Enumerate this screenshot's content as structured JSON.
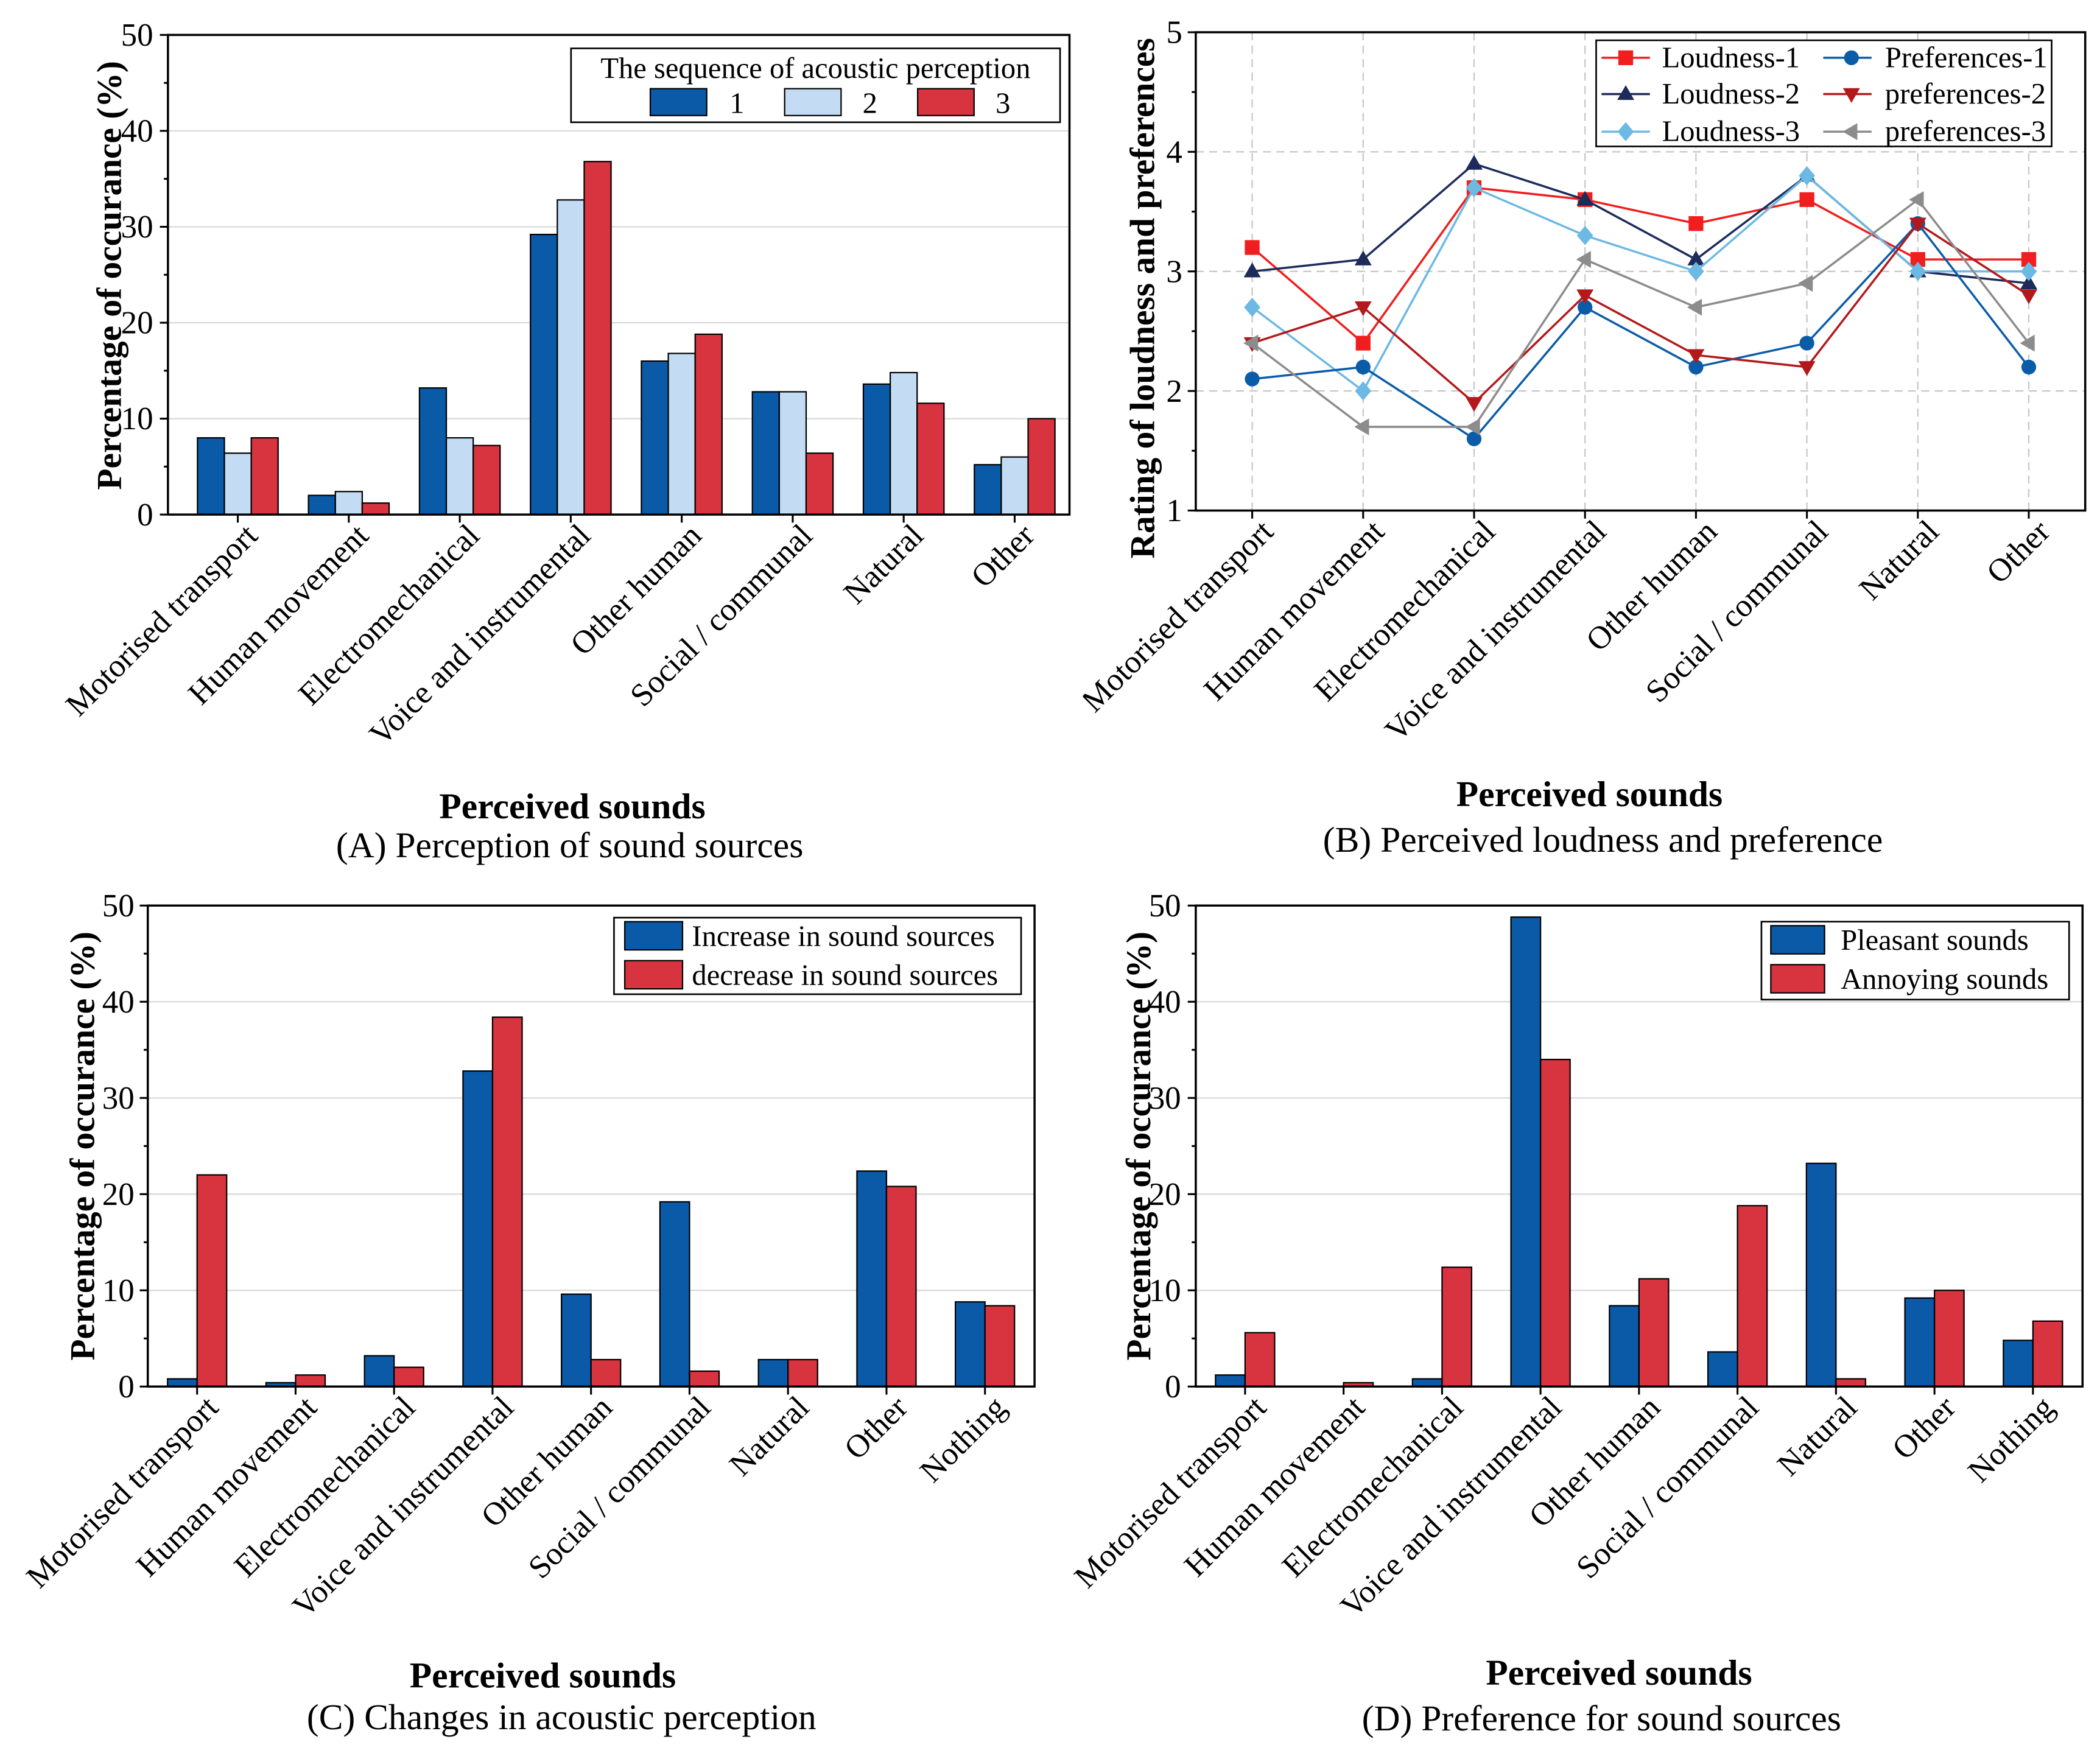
{
  "chart_data": [
    {
      "type": "bar",
      "caption": "(A) Perception of sound sources",
      "xlabel": "Perceived sounds",
      "ylabel": "Percentage of occurance (%)",
      "ylim": [
        0,
        50
      ],
      "yticks": [
        0,
        10,
        20,
        30,
        40,
        50
      ],
      "grid": true,
      "categories": [
        "Motorised transport",
        "Human movement",
        "Electromechanical",
        "Voice and instrumental",
        "Other human",
        "Social / communal",
        "Natural",
        "Other"
      ],
      "legend_title": "The sequence of acoustic perception",
      "legend_position": "top-right",
      "series": [
        {
          "name": "1",
          "color": "#0b5aa8",
          "values": [
            8.0,
            2.0,
            13.2,
            29.2,
            16.0,
            12.8,
            13.6,
            5.2
          ]
        },
        {
          "name": "2",
          "color": "#c3dcf3",
          "values": [
            6.4,
            2.4,
            8.0,
            32.8,
            16.8,
            12.8,
            14.8,
            6.0
          ]
        },
        {
          "name": "3",
          "color": "#d7343f",
          "values": [
            8.0,
            1.2,
            7.2,
            36.8,
            18.8,
            6.4,
            11.6,
            10.0
          ]
        }
      ]
    },
    {
      "type": "line",
      "caption": "(B) Perceived loudness and preference",
      "xlabel": "Perceived sounds",
      "ylabel": "Rating of loudness and preferences",
      "ylim": [
        1,
        5
      ],
      "yticks": [
        1,
        2,
        3,
        4,
        5
      ],
      "grid": true,
      "categories": [
        "Motorised transport",
        "Human movement",
        "Electromechanical",
        "Voice and instrumental",
        "Other human",
        "Social / communal",
        "Natural",
        "Other"
      ],
      "legend_position": "top-right",
      "series": [
        {
          "name": "Loudness-1",
          "color": "#f01e1e",
          "marker": "square",
          "values": [
            3.2,
            2.4,
            3.7,
            3.6,
            3.4,
            3.6,
            3.1,
            3.1
          ]
        },
        {
          "name": "Loudness-2",
          "color": "#1c2b5a",
          "marker": "triangle-up",
          "values": [
            3.0,
            3.1,
            3.9,
            3.6,
            3.1,
            3.8,
            3.0,
            2.9
          ]
        },
        {
          "name": "Loudness-3",
          "color": "#6cb9e3",
          "marker": "diamond",
          "values": [
            2.7,
            2.0,
            3.7,
            3.3,
            3.0,
            3.8,
            3.0,
            3.0
          ]
        },
        {
          "name": "Preferences-1",
          "color": "#0b5ca8",
          "marker": "circle",
          "values": [
            2.1,
            2.2,
            1.6,
            2.7,
            2.2,
            2.4,
            3.4,
            2.2
          ]
        },
        {
          "name": "preferences-2",
          "color": "#b3191b",
          "marker": "triangle-down",
          "values": [
            2.4,
            2.7,
            1.9,
            2.8,
            2.3,
            2.2,
            3.4,
            2.8
          ]
        },
        {
          "name": "preferences-3",
          "color": "#8c8c8c",
          "marker": "triangle-left",
          "values": [
            2.4,
            1.7,
            1.7,
            3.1,
            2.7,
            2.9,
            3.6,
            2.4
          ]
        }
      ]
    },
    {
      "type": "bar",
      "caption": "(C) Changes in acoustic perception",
      "xlabel": "Perceived sounds",
      "ylabel": "Percentage of occurance (%)",
      "ylim": [
        0,
        50
      ],
      "yticks": [
        0,
        10,
        20,
        30,
        40,
        50
      ],
      "grid": true,
      "categories": [
        "Motorised transport",
        "Human movement",
        "Electromechanical",
        "Voice and instrumental",
        "Other human",
        "Social / communal",
        "Natural",
        "Other",
        "Nothing"
      ],
      "legend_position": "top-right",
      "series": [
        {
          "name": "Increase in sound sources",
          "color": "#0b5aa8",
          "values": [
            0.8,
            0.4,
            3.2,
            32.8,
            9.6,
            19.2,
            2.8,
            22.4,
            8.8
          ]
        },
        {
          "name": "decrease in sound sources",
          "color": "#d7343f",
          "values": [
            22.0,
            1.2,
            2.0,
            38.4,
            2.8,
            1.6,
            2.8,
            20.8,
            8.4
          ]
        }
      ]
    },
    {
      "type": "bar",
      "caption": "(D) Preference for sound sources",
      "xlabel": "Perceived sounds",
      "ylabel": "Percentage of occurance (%)",
      "ylim": [
        0,
        50
      ],
      "yticks": [
        0,
        10,
        20,
        30,
        40,
        50
      ],
      "grid": true,
      "categories": [
        "Motorised transport",
        "Human movement",
        "Electromechanical",
        "Voice and instrumental",
        "Other human",
        "Social / communal",
        "Natural",
        "Other",
        "Nothing"
      ],
      "legend_position": "top-right",
      "series": [
        {
          "name": "Pleasant sounds",
          "color": "#0b5aa8",
          "values": [
            1.2,
            0.0,
            0.8,
            48.8,
            8.4,
            3.6,
            23.2,
            9.2,
            4.8
          ]
        },
        {
          "name": "Annoying sounds",
          "color": "#d7343f",
          "values": [
            5.6,
            0.4,
            12.4,
            34.0,
            11.2,
            18.8,
            0.8,
            10.0,
            6.8
          ]
        }
      ]
    }
  ]
}
